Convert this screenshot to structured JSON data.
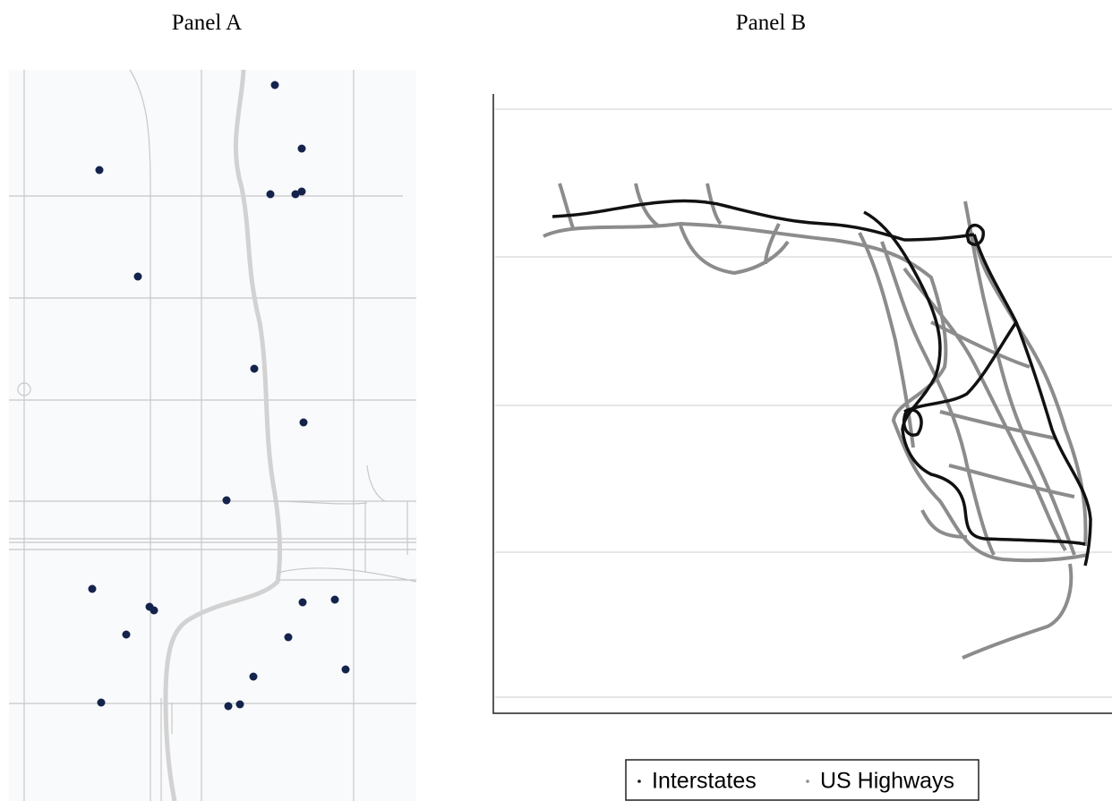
{
  "panels": [
    {
      "title": "Panel A"
    },
    {
      "title": "Panel B",
      "legend": [
        "Interstates",
        "US Highways"
      ]
    }
  ]
}
